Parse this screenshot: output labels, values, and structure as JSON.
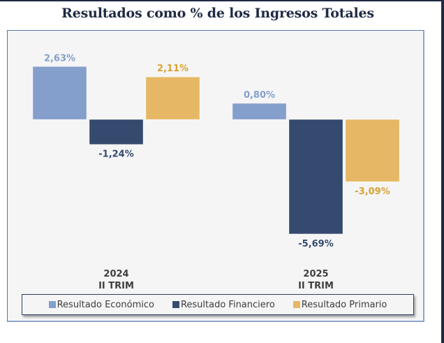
{
  "chart_data": {
    "type": "bar",
    "title": "Resultados como % de los Ingresos Totales",
    "xlabel": "",
    "ylabel": "",
    "categories": [
      {
        "line1": "2024",
        "line2": "II TRIM"
      },
      {
        "line1": "2025",
        "line2": "II TRIM"
      }
    ],
    "series": [
      {
        "name": "Resultado Económico",
        "color": "#849fcc",
        "label_color": "#849fcc",
        "values": [
          2.63,
          0.8
        ],
        "labels": [
          "2,63%",
          "0,80%"
        ]
      },
      {
        "name": "Resultado Financiero",
        "color": "#354a6f",
        "label_color": "#354a6f",
        "values": [
          -1.24,
          -5.69
        ],
        "labels": [
          "-1,24%",
          "-5,69%"
        ]
      },
      {
        "name": "Resultado Primario",
        "color": "#e6b764",
        "label_color": "#d9a232",
        "values": [
          2.11,
          -3.09
        ],
        "labels": [
          "2,11%",
          "-3,09%"
        ]
      }
    ],
    "ylim": [
      -6,
      3
    ],
    "grid": false,
    "axis_ticks_visible": false,
    "legend_position": "bottom"
  }
}
